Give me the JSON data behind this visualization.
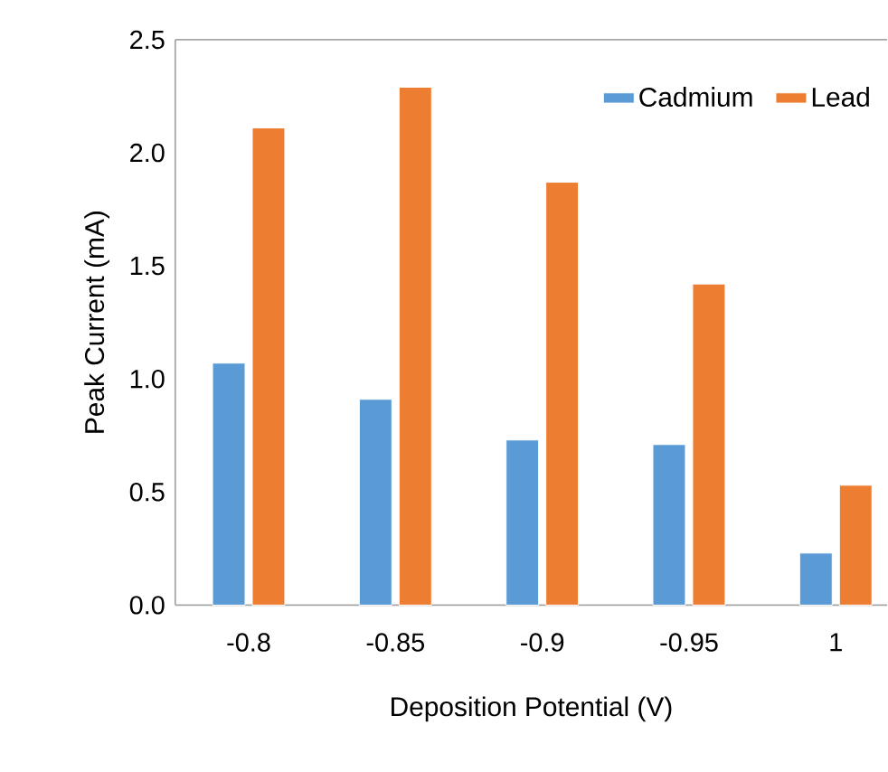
{
  "chart_data": {
    "type": "bar",
    "xlabel": "Deposition Potential (V)",
    "ylabel": "Peak Current (mA)",
    "categories": [
      "-0.8",
      "-0.85",
      "-0.9",
      "-0.95",
      "1"
    ],
    "series": [
      {
        "name": "Cadmium",
        "color": "#5b9bd5",
        "values": [
          1.07,
          0.91,
          0.73,
          0.71,
          0.23
        ]
      },
      {
        "name": "Lead",
        "color": "#ed7d31",
        "values": [
          2.11,
          2.29,
          1.87,
          1.42,
          0.53
        ]
      }
    ],
    "ylim": [
      0,
      2.5
    ],
    "yticks": [
      {
        "value": 0,
        "label": "0.0"
      },
      {
        "value": 0.5,
        "label": "0.5"
      },
      {
        "value": 1,
        "label": "1.0"
      },
      {
        "value": 1.5,
        "label": "1.5"
      },
      {
        "value": 2,
        "label": "2.0"
      },
      {
        "value": 2.5,
        "label": "2.5"
      }
    ],
    "legend": "top right",
    "grid": false
  }
}
